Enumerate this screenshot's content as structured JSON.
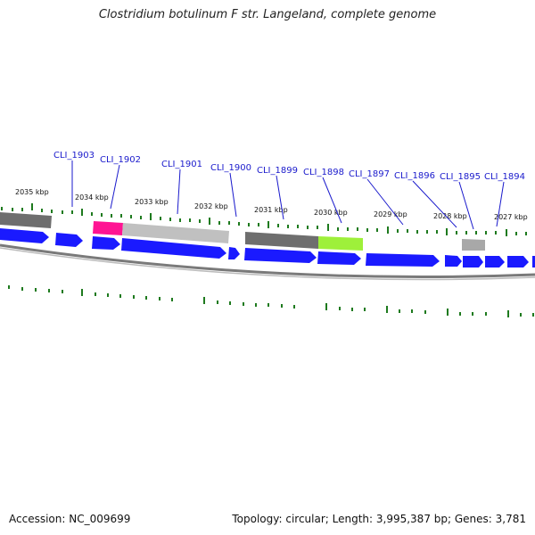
{
  "title": "Clostridium botulinum F str. Langeland, complete genome",
  "footer": {
    "accession": "Accession: NC_009699",
    "summary": "Topology: circular; Length: 3,995,387 bp; Genes: 3,781"
  },
  "colors": {
    "cds_forward": "#1a1aff",
    "label_blue": "#1a1acc",
    "tick_green": "#1e7a1e",
    "backbone_gray": "#888888",
    "magenta_feature": "#ff1493",
    "lime_feature": "#a6f542"
  },
  "genes": [
    {
      "name": "CLI_1903"
    },
    {
      "name": "CLI_1902"
    },
    {
      "name": "CLI_1901"
    },
    {
      "name": "CLI_1900"
    },
    {
      "name": "CLI_1899"
    },
    {
      "name": "CLI_1898"
    },
    {
      "name": "CLI_1897"
    },
    {
      "name": "CLI_1896"
    },
    {
      "name": "CLI_1895"
    },
    {
      "name": "CLI_1894"
    }
  ],
  "kbp_ticks": [
    {
      "label": "2035 kbp"
    },
    {
      "label": "2034 kbp"
    },
    {
      "label": "2033 kbp"
    },
    {
      "label": "2032 kbp"
    },
    {
      "label": "2031 kbp"
    },
    {
      "label": "2030 kbp"
    },
    {
      "label": "2029 kbp"
    },
    {
      "label": "2028 kbp"
    },
    {
      "label": "2027 kbp"
    }
  ]
}
